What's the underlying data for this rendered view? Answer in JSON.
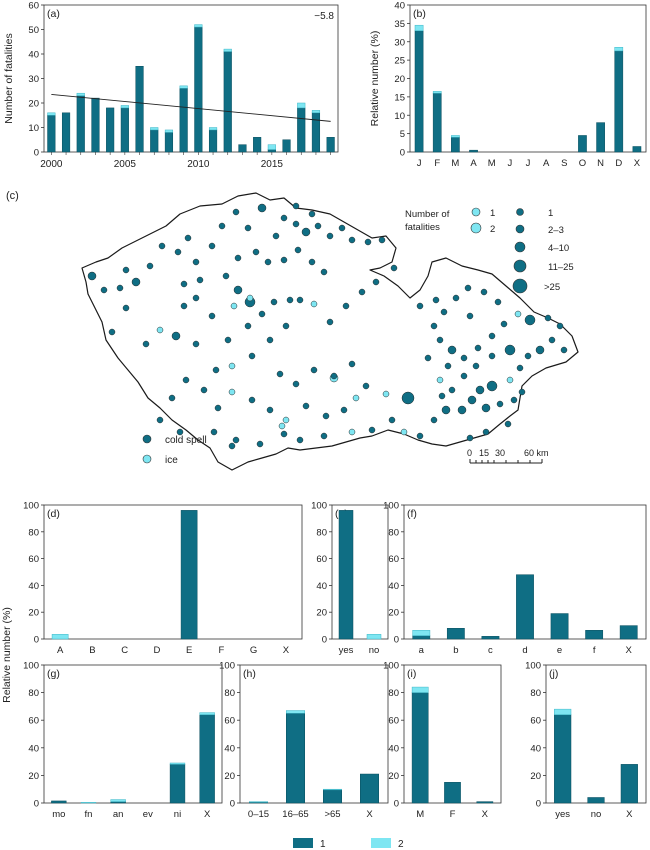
{
  "colors": {
    "primary": "#0f6e84",
    "secondary": "#7ee6f2",
    "axis": "#333333",
    "text": "#222222",
    "border": "#1a1a1a"
  },
  "ylabels": {
    "a": "Number of fatalities",
    "b": "Relative number (%)",
    "d": "Relative number (%)",
    "g": "Relative number (%)"
  },
  "panel_labels": {
    "a": "(a)",
    "b": "(b)",
    "c": "(c)",
    "d": "(d)",
    "e": "(e)",
    "f": "(f)",
    "g": "(g)",
    "h": "(h)",
    "i": "(i)",
    "j": "(j)"
  },
  "trend_label": "−5.8",
  "bottom_legend": {
    "items": [
      "1",
      "2"
    ]
  },
  "map": {
    "legend_title": [
      "Number of",
      "fatalities"
    ],
    "legend_cols": [
      "1",
      "2"
    ],
    "size_labels": [
      "1",
      "2–3",
      "4–10",
      "11–25",
      ">25"
    ],
    "type_labels": [
      "cold spell",
      "ice"
    ],
    "scale_labels": [
      "0",
      "15",
      "30",
      "60 km"
    ]
  },
  "chart_data": [
    {
      "panel": "a",
      "type": "bar",
      "stacked": true,
      "x": [
        2000,
        2001,
        2002,
        2003,
        2004,
        2005,
        2006,
        2007,
        2008,
        2009,
        2010,
        2011,
        2012,
        2013,
        2014,
        2015,
        2016,
        2017,
        2018,
        2019
      ],
      "series": [
        {
          "values": [
            15,
            16,
            23,
            22,
            18,
            18,
            35,
            9,
            8,
            26,
            51,
            9,
            41,
            3,
            6,
            1,
            5,
            18,
            16,
            6
          ]
        },
        {
          "values": [
            1,
            0,
            1,
            0,
            0,
            1,
            0,
            1,
            1,
            1,
            1,
            1,
            1,
            0,
            0,
            2,
            0,
            2,
            1,
            0
          ]
        }
      ],
      "xticks": [
        "2000",
        "2005",
        "2010",
        "2015"
      ],
      "ylim": [
        0,
        60
      ],
      "yticks": [
        0,
        10,
        20,
        30,
        40,
        50,
        60
      ],
      "ylabel": "Number of fatalities",
      "trend": {
        "x": [
          2000,
          2019
        ],
        "y": [
          23.5,
          12.5
        ]
      }
    },
    {
      "panel": "b",
      "type": "bar",
      "stacked": true,
      "categories": [
        "J",
        "F",
        "M",
        "A",
        "M",
        "J",
        "J",
        "A",
        "S",
        "O",
        "N",
        "D",
        "X"
      ],
      "series": [
        {
          "values": [
            33,
            16,
            4,
            0.5,
            0,
            0,
            0,
            0,
            0,
            4.5,
            8,
            27.5,
            1.5
          ]
        },
        {
          "values": [
            1.5,
            0.5,
            0.5,
            0,
            0,
            0,
            0,
            0,
            0,
            0,
            0,
            1,
            0
          ]
        }
      ],
      "ylim": [
        0,
        40
      ],
      "yticks": [
        0,
        5,
        10,
        15,
        20,
        25,
        30,
        35,
        40
      ],
      "ylabel": "Relative number (%)"
    },
    {
      "panel": "d",
      "type": "bar",
      "stacked": true,
      "categories": [
        "A",
        "B",
        "C",
        "D",
        "E",
        "F",
        "G",
        "X"
      ],
      "series": [
        {
          "values": [
            0,
            0,
            0,
            0,
            96,
            0,
            0,
            0
          ]
        },
        {
          "values": [
            3.5,
            0,
            0,
            0,
            0,
            0,
            0,
            0
          ]
        }
      ],
      "ylim": [
        0,
        100
      ],
      "yticks": [
        0,
        20,
        40,
        60,
        80,
        100
      ]
    },
    {
      "panel": "e",
      "type": "bar",
      "stacked": true,
      "categories": [
        "yes",
        "no"
      ],
      "series": [
        {
          "values": [
            96,
            0
          ]
        },
        {
          "values": [
            0,
            3.5
          ]
        }
      ],
      "ylim": [
        0,
        100
      ],
      "yticks": [
        0,
        20,
        40,
        60,
        80,
        100
      ]
    },
    {
      "panel": "f",
      "type": "bar",
      "stacked": true,
      "categories": [
        "a",
        "b",
        "c",
        "d",
        "e",
        "f",
        "X"
      ],
      "series": [
        {
          "values": [
            2.5,
            8,
            2,
            48,
            19,
            6.5,
            10
          ]
        },
        {
          "values": [
            4,
            0,
            0,
            0,
            0,
            0,
            0
          ]
        }
      ],
      "ylim": [
        0,
        100
      ],
      "yticks": [
        0,
        20,
        40,
        60,
        80,
        100
      ]
    },
    {
      "panel": "g",
      "type": "bar",
      "stacked": true,
      "categories": [
        "mo",
        "fn",
        "an",
        "ev",
        "ni",
        "X"
      ],
      "series": [
        {
          "values": [
            1.5,
            0,
            1,
            0,
            28,
            64
          ]
        },
        {
          "values": [
            0,
            0.5,
            1.5,
            0,
            1,
            1.5
          ]
        }
      ],
      "ylim": [
        0,
        100
      ],
      "yticks": [
        0,
        20,
        40,
        60,
        80,
        100
      ]
    },
    {
      "panel": "h",
      "type": "bar",
      "stacked": true,
      "categories": [
        "0–15",
        "16–65",
        ">65",
        "X"
      ],
      "series": [
        {
          "values": [
            0.5,
            65,
            9.5,
            21
          ]
        },
        {
          "values": [
            0.5,
            2,
            0.5,
            0
          ]
        }
      ],
      "ylim": [
        0,
        100
      ],
      "yticks": [
        0,
        20,
        40,
        60,
        80,
        100
      ]
    },
    {
      "panel": "i",
      "type": "bar",
      "stacked": true,
      "categories": [
        "M",
        "F",
        "X"
      ],
      "series": [
        {
          "values": [
            80,
            15,
            1
          ]
        },
        {
          "values": [
            4,
            0,
            0
          ]
        }
      ],
      "ylim": [
        0,
        100
      ],
      "yticks": [
        0,
        20,
        40,
        60,
        80,
        100
      ]
    },
    {
      "panel": "j",
      "type": "bar",
      "stacked": true,
      "categories": [
        "yes",
        "no",
        "X"
      ],
      "series": [
        {
          "values": [
            64,
            4,
            28
          ]
        },
        {
          "values": [
            4,
            0,
            0
          ]
        }
      ],
      "ylim": [
        0,
        100
      ],
      "yticks": [
        0,
        20,
        40,
        60,
        80,
        100
      ]
    }
  ]
}
